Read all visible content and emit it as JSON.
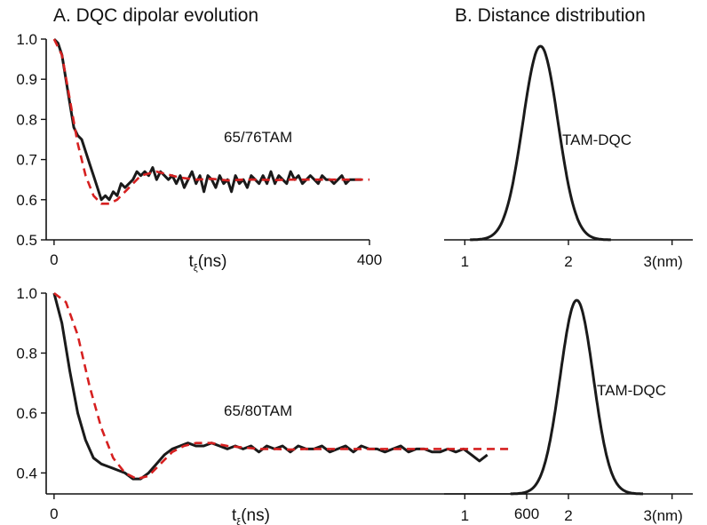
{
  "panels": {
    "A": {
      "title": "A. DQC dipolar evolution"
    },
    "B": {
      "title": "B. Distance distribution"
    }
  },
  "colors": {
    "measured": "#1a1a1a",
    "fit": "#d62020",
    "axis": "#111111"
  },
  "chart_data": [
    {
      "id": "A-top",
      "type": "line",
      "annotation": "65/76TAM",
      "xlabel_main": "t",
      "xlabel_sub": "ξ",
      "xlabel_unit": "(ns)",
      "xlim": [
        -10,
        400
      ],
      "ylim": [
        0.5,
        1.0
      ],
      "xticks": [
        0,
        400
      ],
      "yticks": [
        0.5,
        0.6,
        0.7,
        0.8,
        0.9,
        1.0
      ],
      "ytick_labels": [
        "0.5",
        "0.6",
        "0.7",
        "0.8",
        "0.9",
        "1.0"
      ],
      "series": [
        {
          "role": "measured",
          "style": "solid",
          "x": [
            0,
            5,
            10,
            15,
            20,
            25,
            30,
            35,
            40,
            45,
            50,
            55,
            60,
            65,
            70,
            75,
            80,
            85,
            90,
            95,
            100,
            105,
            110,
            115,
            120,
            125,
            130,
            135,
            140,
            145,
            150,
            155,
            160,
            165,
            170,
            175,
            180,
            185,
            190,
            195,
            200,
            205,
            210,
            215,
            220,
            225,
            230,
            235,
            240,
            245,
            250,
            255,
            260,
            265,
            270,
            275,
            280,
            285,
            290,
            295,
            300,
            305,
            310,
            315,
            320,
            325,
            330,
            335,
            340,
            345,
            350,
            355,
            360,
            365,
            370,
            375,
            380,
            385,
            390
          ],
          "y": [
            1.0,
            0.99,
            0.96,
            0.9,
            0.84,
            0.78,
            0.76,
            0.75,
            0.72,
            0.69,
            0.66,
            0.63,
            0.6,
            0.61,
            0.6,
            0.62,
            0.61,
            0.64,
            0.63,
            0.64,
            0.65,
            0.67,
            0.66,
            0.67,
            0.66,
            0.68,
            0.65,
            0.67,
            0.66,
            0.65,
            0.66,
            0.64,
            0.66,
            0.63,
            0.65,
            0.67,
            0.64,
            0.66,
            0.62,
            0.66,
            0.65,
            0.63,
            0.66,
            0.64,
            0.65,
            0.62,
            0.66,
            0.64,
            0.65,
            0.63,
            0.66,
            0.65,
            0.64,
            0.66,
            0.64,
            0.67,
            0.64,
            0.66,
            0.65,
            0.64,
            0.67,
            0.65,
            0.66,
            0.64,
            0.65,
            0.66,
            0.65,
            0.64,
            0.66,
            0.65,
            0.65,
            0.64,
            0.65,
            0.66,
            0.64,
            0.65,
            0.65,
            0.65,
            0.65
          ]
        },
        {
          "role": "fit",
          "style": "dashed",
          "x": [
            0,
            10,
            20,
            30,
            40,
            50,
            60,
            70,
            80,
            90,
            100,
            110,
            120,
            130,
            140,
            150,
            160,
            180,
            200,
            220,
            240,
            260,
            280,
            300,
            320,
            340,
            360,
            380,
            400
          ],
          "y": [
            1.0,
            0.96,
            0.85,
            0.74,
            0.66,
            0.61,
            0.59,
            0.59,
            0.6,
            0.62,
            0.64,
            0.66,
            0.665,
            0.67,
            0.665,
            0.66,
            0.655,
            0.65,
            0.652,
            0.648,
            0.65,
            0.65,
            0.649,
            0.65,
            0.65,
            0.65,
            0.65,
            0.65,
            0.65
          ]
        }
      ]
    },
    {
      "id": "A-bottom",
      "type": "line",
      "annotation": "65/80TAM",
      "xlabel_main": "t",
      "xlabel_sub": "ξ",
      "xlabel_unit": "(ns)",
      "xlim": [
        -10,
        600
      ],
      "ylim": [
        0.33,
        1.0
      ],
      "xticks": [
        0,
        600
      ],
      "yticks": [
        0.4,
        0.6,
        0.8,
        1.0
      ],
      "ytick_labels": [
        "0.4",
        "0.6",
        "0.8",
        "1.0"
      ],
      "series": [
        {
          "role": "measured",
          "style": "solid",
          "x": [
            0,
            10,
            20,
            30,
            40,
            50,
            60,
            70,
            80,
            90,
            100,
            110,
            120,
            130,
            140,
            150,
            160,
            170,
            180,
            190,
            200,
            210,
            220,
            230,
            240,
            250,
            260,
            270,
            280,
            290,
            300,
            310,
            320,
            330,
            340,
            350,
            360,
            370,
            380,
            390,
            400,
            410,
            420,
            430,
            440,
            450,
            460,
            470,
            480,
            490,
            500,
            510,
            520,
            530,
            540,
            550
          ],
          "y": [
            1.0,
            0.9,
            0.74,
            0.6,
            0.51,
            0.45,
            0.43,
            0.42,
            0.41,
            0.4,
            0.38,
            0.38,
            0.4,
            0.43,
            0.46,
            0.48,
            0.49,
            0.5,
            0.49,
            0.49,
            0.5,
            0.49,
            0.48,
            0.49,
            0.48,
            0.49,
            0.47,
            0.49,
            0.48,
            0.49,
            0.47,
            0.49,
            0.48,
            0.48,
            0.49,
            0.47,
            0.48,
            0.49,
            0.47,
            0.49,
            0.48,
            0.48,
            0.47,
            0.48,
            0.49,
            0.47,
            0.48,
            0.48,
            0.47,
            0.47,
            0.48,
            0.47,
            0.48,
            0.46,
            0.44,
            0.46
          ]
        },
        {
          "role": "fit",
          "style": "dashed",
          "x": [
            0,
            15,
            30,
            45,
            60,
            75,
            90,
            105,
            120,
            135,
            150,
            165,
            180,
            200,
            220,
            240,
            260,
            280,
            300,
            320,
            340,
            360,
            380,
            400,
            420,
            440,
            460,
            480,
            500,
            520,
            540,
            560,
            580
          ],
          "y": [
            1.0,
            0.97,
            0.86,
            0.69,
            0.55,
            0.45,
            0.4,
            0.38,
            0.39,
            0.43,
            0.47,
            0.49,
            0.5,
            0.5,
            0.49,
            0.485,
            0.48,
            0.48,
            0.478,
            0.48,
            0.48,
            0.48,
            0.48,
            0.48,
            0.48,
            0.48,
            0.48,
            0.48,
            0.48,
            0.48,
            0.48,
            0.48,
            0.48
          ]
        }
      ]
    },
    {
      "id": "B-top",
      "type": "line",
      "annotation": "TAM-DQC",
      "xlim": [
        0.8,
        3.2
      ],
      "xticks": [
        1,
        2,
        3
      ],
      "xtick_labels": [
        "1",
        "2",
        "3(nm)"
      ],
      "peak": {
        "center": 1.73,
        "width": 0.17
      }
    },
    {
      "id": "B-bottom",
      "type": "line",
      "annotation": "TAM-DQC",
      "xlim": [
        0.8,
        3.2
      ],
      "xticks": [
        1,
        2,
        3
      ],
      "xtick_labels": [
        "1",
        "2",
        "3(nm)"
      ],
      "peak": {
        "center": 2.08,
        "width": 0.16
      }
    }
  ]
}
